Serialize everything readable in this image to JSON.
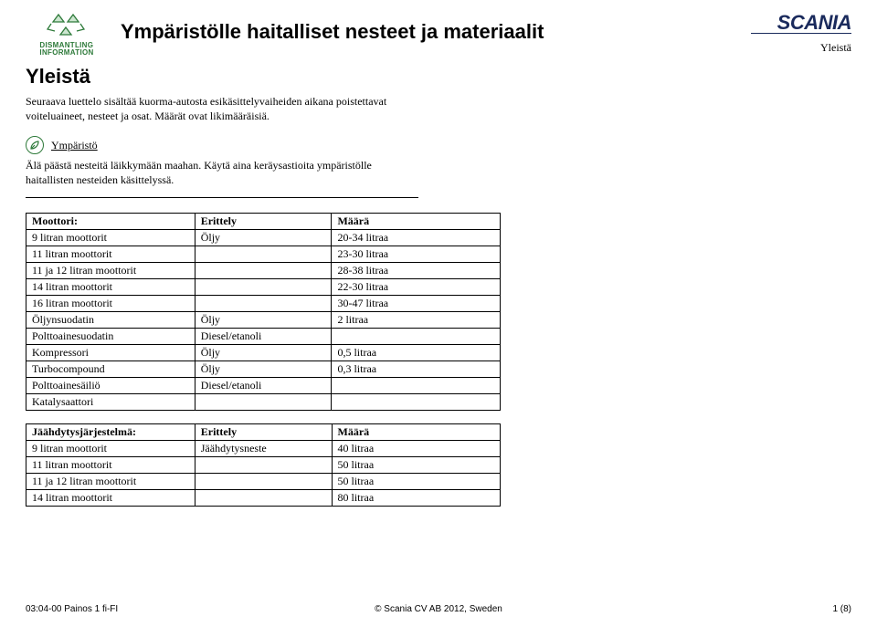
{
  "header": {
    "logo_line1": "DISMANTLING",
    "logo_line2": "INFORMATION",
    "doc_title": "Ympäristölle haitalliset nesteet ja materiaalit",
    "brand": "SCANIA",
    "top_subtitle": "Yleistä"
  },
  "section_heading": "Yleistä",
  "intro": "Seuraava luettelo sisältää kuorma-autosta esikäsittelyvaiheiden aikana poistettavat voiteluaineet, nesteet ja osat. Määrät ovat likimääräisiä.",
  "env": {
    "title": "Ympäristö",
    "text": "Älä päästä nesteitä läikkymään maahan. Käytä aina keräysastioita ympäristölle haitallisten nesteiden käsittelyssä."
  },
  "table1": {
    "head": [
      "Moottori:",
      "Erittely",
      "Määrä"
    ],
    "rows": [
      [
        "9 litran moottorit",
        "Öljy",
        "20-34 litraa"
      ],
      [
        "11 litran moottorit",
        "",
        "23-30 litraa"
      ],
      [
        "11 ja 12 litran moottorit",
        "",
        "28-38 litraa"
      ],
      [
        "14 litran moottorit",
        "",
        "22-30 litraa"
      ],
      [
        "16 litran moottorit",
        "",
        "30-47 litraa"
      ],
      [
        "Öljynsuodatin",
        "Öljy",
        "2 litraa"
      ],
      [
        "Polttoainesuodatin",
        "Diesel/etanoli",
        ""
      ],
      [
        "Kompressori",
        "Öljy",
        "0,5 litraa"
      ],
      [
        "Turbocompound",
        "Öljy",
        "0,3 litraa"
      ],
      [
        "Polttoainesäiliö",
        "Diesel/etanoli",
        ""
      ],
      [
        "Katalysaattori",
        "",
        ""
      ]
    ]
  },
  "table2": {
    "head": [
      "Jäähdytysjärjestelmä:",
      "Erittely",
      "Määrä"
    ],
    "rows": [
      [
        "9 litran moottorit",
        "Jäähdytysneste",
        "40 litraa"
      ],
      [
        "11 litran moottorit",
        "",
        "50 litraa"
      ],
      [
        "11 ja 12 litran moottorit",
        "",
        "50 litraa"
      ],
      [
        "14 litran moottorit",
        "",
        "80 litraa"
      ]
    ]
  },
  "footer": {
    "left": "03:04-00 Painos 1 fi-FI",
    "center": "© Scania CV AB 2012, Sweden",
    "right": "1 (8)"
  },
  "colors": {
    "green": "#2e7a3a",
    "navy": "#1a2a5c"
  }
}
